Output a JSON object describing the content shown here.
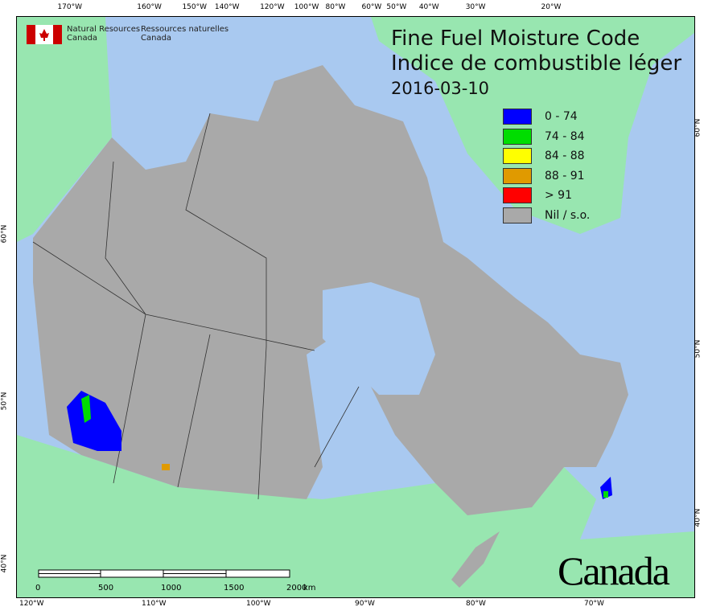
{
  "title": {
    "en": "Fine Fuel Moisture Code",
    "fr": "Indice de combustible léger",
    "date": "2016-03-10"
  },
  "logo": {
    "en1": "Natural Resources",
    "en2": "Canada",
    "fr1": "Ressources naturelles",
    "fr2": "Canada"
  },
  "wordmark": "Canada",
  "legend": [
    {
      "label": "0 - 74",
      "color": "#0000ff"
    },
    {
      "label": "74 - 84",
      "color": "#00dd00"
    },
    {
      "label": "84 - 88",
      "color": "#ffff00"
    },
    {
      "label": "88 - 91",
      "color": "#e09a00"
    },
    {
      "label": "> 91",
      "color": "#ff0000"
    },
    {
      "label": "Nil / s.o.",
      "color": "#a9a9a9"
    }
  ],
  "top_ticks": [
    "170°W",
    "160°W",
    "150°W",
    "140°W",
    "120°W",
    "100°W",
    "80°W",
    "60°W",
    "50°W",
    "40°W",
    "30°W",
    "20°W"
  ],
  "bottom_ticks": [
    "120°W",
    "110°W",
    "100°W",
    "90°W",
    "80°W",
    "70°W"
  ],
  "left_ticks": [
    "60°N",
    "50°N",
    "40°N"
  ],
  "right_ticks": [
    "60°N",
    "50°N",
    "40°N"
  ],
  "scale": {
    "labels": [
      "0",
      "500",
      "1000",
      "1500",
      "2000"
    ],
    "unit": "km"
  },
  "colors": {
    "ocean": "#a9c9f0",
    "land": "#98e6b0",
    "nodata": "#a9a9a9"
  }
}
